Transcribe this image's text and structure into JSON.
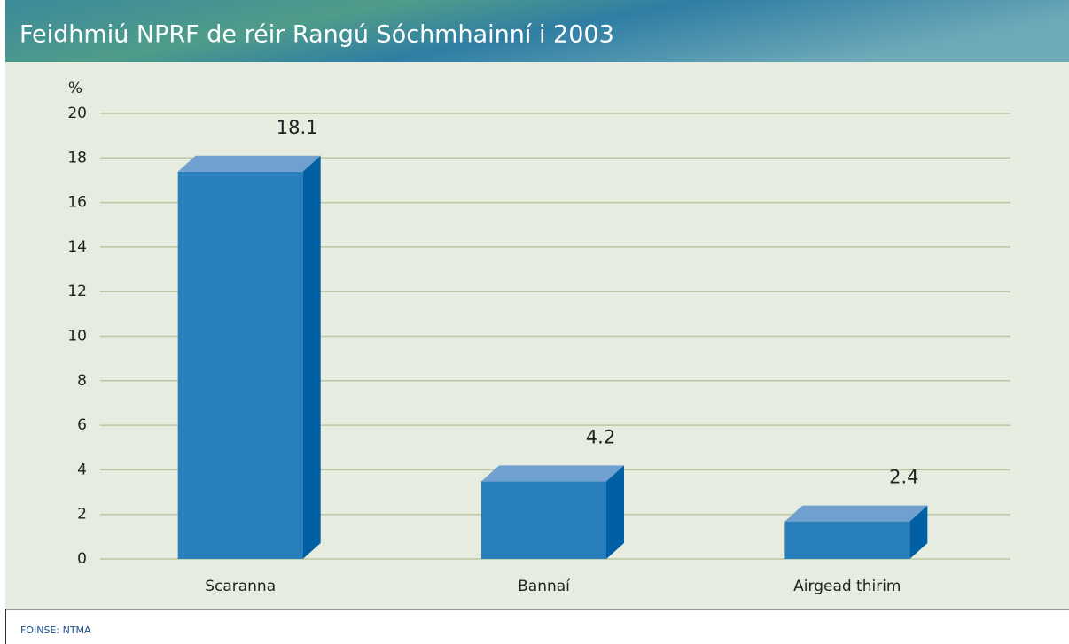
{
  "chart_data": {
    "type": "bar3d",
    "title": "Feidhmiú NPRF de réir Rangú Sóchmhainní i 2003",
    "ylabel": "%",
    "categories": [
      "Scaranna",
      "Bannaí",
      "Airgead thirim"
    ],
    "values": [
      18.1,
      4.2,
      2.4
    ],
    "colors": {
      "front": "#2a7fbd",
      "top": "#6fa0d0",
      "side": "#0060a3"
    },
    "ylim": [
      0,
      20
    ],
    "yticks": [
      0,
      2,
      4,
      6,
      8,
      10,
      12,
      14,
      16,
      18,
      20
    ],
    "grid": true,
    "source": "FOINSE: NTMA"
  }
}
